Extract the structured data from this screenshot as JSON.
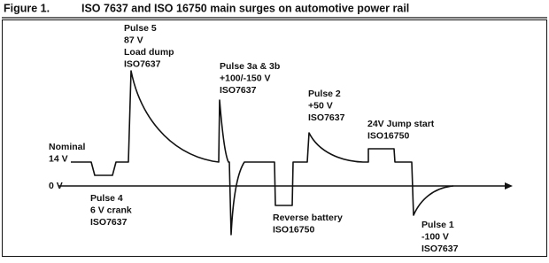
{
  "figure": {
    "label": "Figure 1.",
    "title": "ISO 7637 and ISO 16750 main surges on automotive power rail"
  },
  "annotations": [
    {
      "lines": [
        "Pulse 5",
        "87 V",
        "Load dump",
        "ISO7637"
      ]
    },
    {
      "lines": [
        "Pulse 3a & 3b",
        "+100/-150 V",
        "ISO7637"
      ]
    },
    {
      "lines": [
        "Pulse 2",
        "+50 V",
        "ISO7637"
      ]
    },
    {
      "lines": [
        "24V Jump start",
        "ISO16750"
      ]
    },
    {
      "lines": [
        "Nominal",
        "14 V"
      ]
    },
    {
      "lines": [
        "0 V"
      ]
    },
    {
      "lines": [
        "Pulse 4",
        "6 V crank",
        "ISO7637"
      ]
    },
    {
      "lines": [
        "Reverse battery",
        "ISO16750"
      ]
    },
    {
      "lines": [
        "Pulse 1",
        "-100 V",
        "ISO7637"
      ]
    }
  ]
}
